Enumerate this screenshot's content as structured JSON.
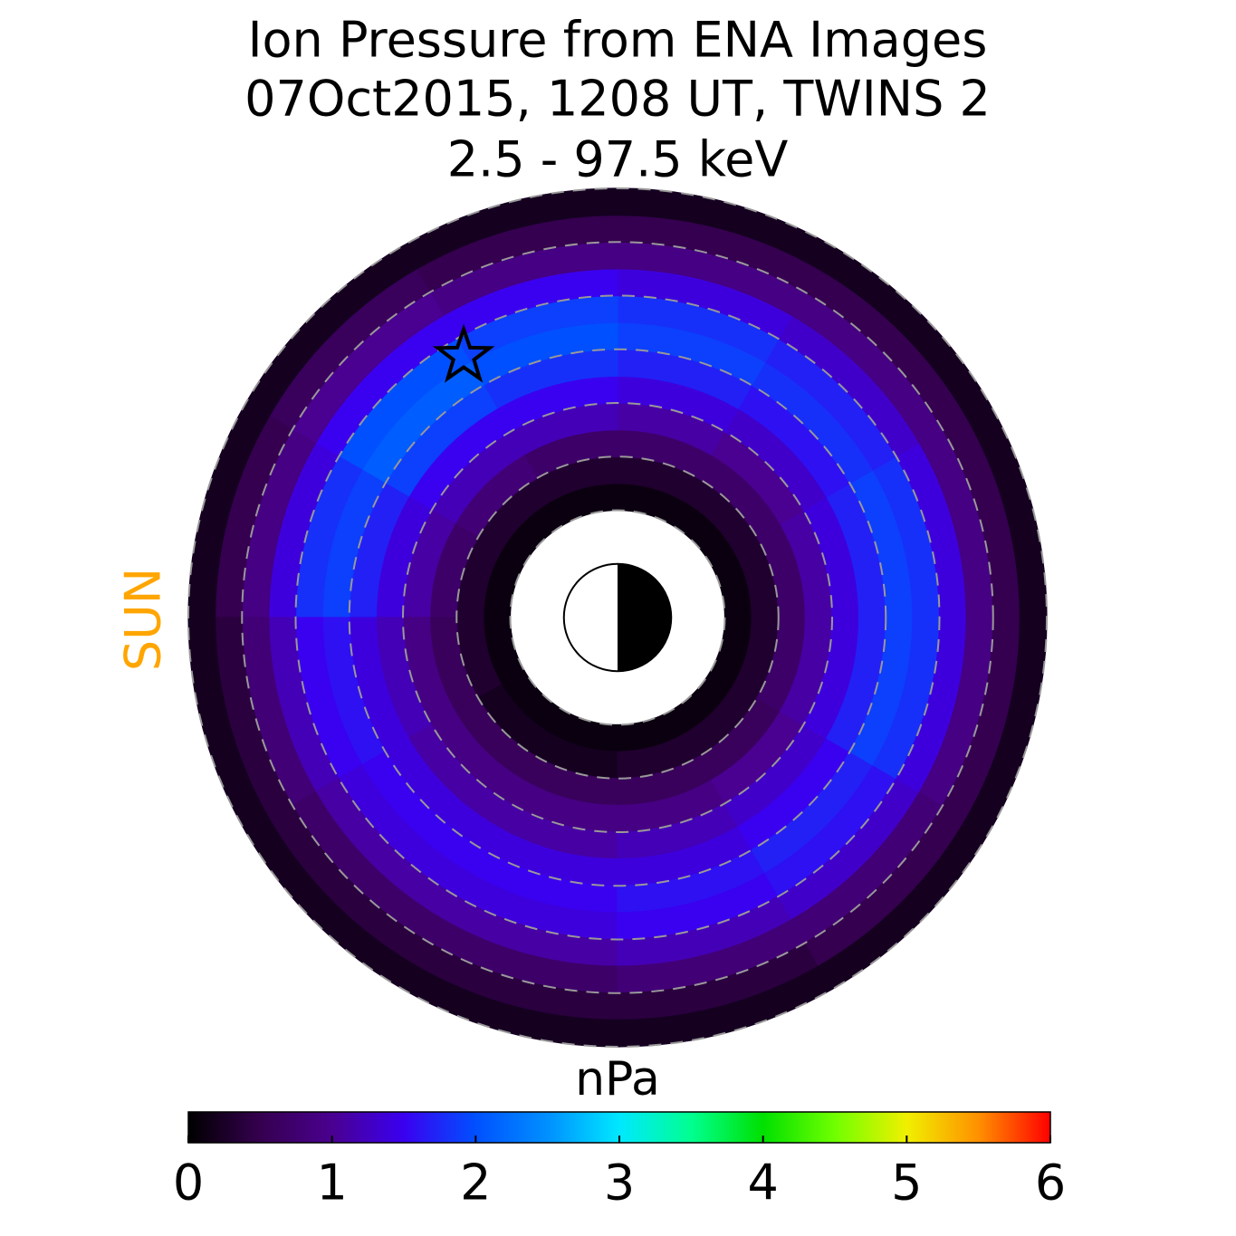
{
  "chart_data": {
    "type": "polar_heatmap",
    "title": [
      "Ion Pressure from  ENA Images",
      "07Oct2015, 1208 UT,  TWINS 2",
      "2.5 - 97.5 keV"
    ],
    "sun_label": "SUN",
    "colorbar_label": "nPa",
    "r_edges": [
      2,
      2.5,
      3,
      3.5,
      4,
      4.5,
      5,
      5.5,
      6,
      6.5,
      7,
      7.5,
      8
    ],
    "theta_edges": [
      0,
      30,
      60,
      90,
      120,
      150,
      180,
      210,
      240,
      270,
      300,
      330,
      360
    ],
    "values": [
      [
        0.1,
        0.3,
        0.7,
        1.1,
        1.4,
        1.7,
        1.9,
        1.8,
        1.4,
        0.9,
        0.5,
        0.2
      ],
      [
        0.1,
        0.3,
        0.7,
        1.0,
        1.3,
        1.6,
        1.8,
        1.7,
        1.3,
        0.9,
        0.5,
        0.2
      ],
      [
        0.1,
        0.3,
        0.7,
        1.1,
        1.4,
        1.7,
        1.9,
        1.8,
        1.4,
        0.9,
        0.5,
        0.2
      ],
      [
        0.1,
        0.3,
        0.7,
        1.2,
        1.5,
        1.8,
        2.0,
        1.9,
        1.5,
        0.9,
        0.5,
        0.2
      ],
      [
        0.1,
        0.3,
        0.8,
        1.2,
        1.5,
        1.9,
        2.1,
        2.0,
        1.5,
        1.0,
        0.6,
        0.2
      ],
      [
        0.1,
        0.3,
        0.7,
        1.1,
        1.4,
        1.7,
        1.9,
        1.8,
        1.4,
        0.9,
        0.5,
        0.2
      ],
      [
        0.1,
        0.3,
        0.6,
        0.9,
        1.2,
        1.4,
        1.6,
        1.5,
        1.2,
        0.8,
        0.4,
        0.2
      ],
      [
        0.1,
        0.2,
        0.6,
        0.9,
        1.1,
        1.4,
        1.5,
        1.4,
        1.1,
        0.7,
        0.4,
        0.2
      ],
      [
        0.1,
        0.2,
        0.6,
        0.9,
        1.1,
        1.4,
        1.5,
        1.4,
        1.1,
        0.7,
        0.4,
        0.2
      ],
      [
        0.1,
        0.3,
        0.6,
        0.9,
        1.2,
        1.4,
        1.6,
        1.5,
        1.2,
        0.8,
        0.4,
        0.2
      ],
      [
        0.1,
        0.3,
        0.6,
        1.0,
        1.3,
        1.5,
        1.7,
        1.6,
        1.3,
        0.8,
        0.5,
        0.2
      ],
      [
        0.1,
        0.3,
        0.7,
        1.1,
        1.4,
        1.7,
        1.9,
        1.8,
        1.4,
        0.9,
        0.5,
        0.2
      ]
    ],
    "rlim": [
      0,
      8
    ],
    "rgrid": [
      2,
      3,
      4,
      5,
      6,
      7,
      8
    ],
    "marker": {
      "r": 5.65,
      "theta": 120.5
    },
    "clim": [
      0,
      6
    ],
    "cticks": [
      0,
      1,
      2,
      3,
      4,
      5,
      6
    ],
    "colormap": [
      "#000000",
      "#35004f",
      "#4a0090",
      "#3a00f0",
      "#0050ff",
      "#0090ff",
      "#00e8ff",
      "#00ff90",
      "#00e000",
      "#70ff00",
      "#f0f000",
      "#ff9000",
      "#ff0000"
    ],
    "sun_color": "#ffa500"
  }
}
